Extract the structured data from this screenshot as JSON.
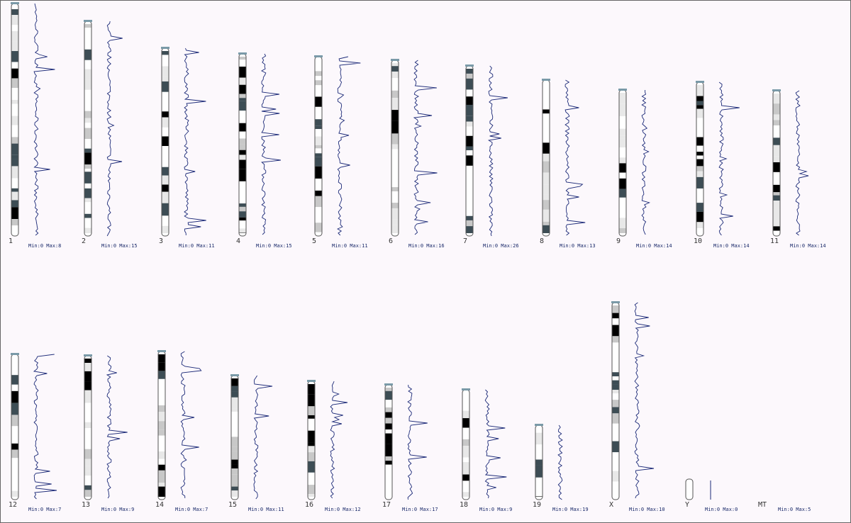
{
  "chromosomes": [
    {
      "name": "1",
      "scale": "Min:0 Max:8"
    },
    {
      "name": "2",
      "scale": "Min:0 Max:15"
    },
    {
      "name": "3",
      "scale": "Min:0 Max:11"
    },
    {
      "name": "4",
      "scale": "Min:0 Max:15"
    },
    {
      "name": "5",
      "scale": "Min:0 Max:11"
    },
    {
      "name": "6",
      "scale": "Min:0 Max:16"
    },
    {
      "name": "7",
      "scale": "Min:0 Max:26"
    },
    {
      "name": "8",
      "scale": "Min:0 Max:13"
    },
    {
      "name": "9",
      "scale": "Min:0 Max:14"
    },
    {
      "name": "10",
      "scale": "Min:0 Max:14"
    },
    {
      "name": "11",
      "scale": "Min:0 Max:14"
    },
    {
      "name": "12",
      "scale": "Min:0 Max:7"
    },
    {
      "name": "13",
      "scale": "Min:0 Max:9"
    },
    {
      "name": "14",
      "scale": "Min:0 Max:7"
    },
    {
      "name": "15",
      "scale": "Min:0 Max:11"
    },
    {
      "name": "16",
      "scale": "Min:0 Max:12"
    },
    {
      "name": "17",
      "scale": "Min:0 Max:17"
    },
    {
      "name": "18",
      "scale": "Min:0 Max:9"
    },
    {
      "name": "19",
      "scale": "Min:0 Max:19"
    },
    {
      "name": "X",
      "scale": "Min:0 Max:10"
    },
    {
      "name": "Y",
      "scale": "Min:0 Max:0"
    },
    {
      "name": "MT",
      "scale": "Min:0 Max:5"
    }
  ]
}
